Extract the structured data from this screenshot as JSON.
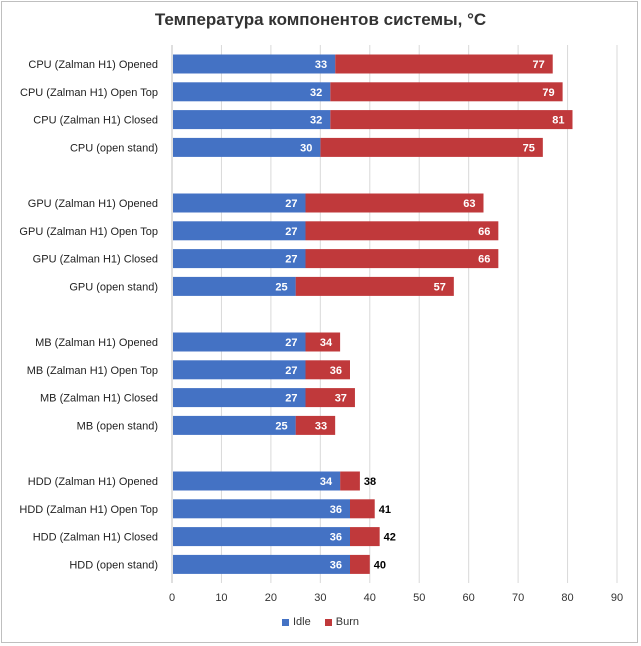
{
  "chart_data": {
    "type": "bar",
    "orientation": "horizontal",
    "stacked_overlay": true,
    "title": "Температура компонентов системы, °C",
    "categories": [
      "CPU (Zalman H1) Opened",
      "CPU (Zalman H1) Open Top",
      "CPU (Zalman H1) Closed",
      "CPU (open stand)",
      "GPU (Zalman  H1) Opened",
      "GPU (Zalman  H1) Open Top",
      "GPU (Zalman  H1) Closed",
      "GPU (open stand)",
      "MB (Zalman H1) Opened",
      "MB (Zalman H1) Open Top",
      "MB (Zalman H1) Closed",
      "MB (open stand)",
      "HDD (Zalman  H1) Opened",
      "HDD (Zalman  H1) Open Top",
      "HDD (Zalman  H1) Closed",
      "HDD (open stand)"
    ],
    "groups": [
      4,
      4,
      4,
      4
    ],
    "series": [
      {
        "name": "Idle",
        "color": "#4472c4",
        "values": [
          33,
          32,
          32,
          30,
          27,
          27,
          27,
          25,
          27,
          27,
          27,
          25,
          34,
          36,
          36,
          36
        ]
      },
      {
        "name": "Burn",
        "color": "#c0393b",
        "values": [
          77,
          79,
          81,
          75,
          63,
          66,
          66,
          57,
          34,
          36,
          37,
          33,
          38,
          41,
          42,
          40
        ]
      }
    ],
    "xlim": [
      0,
      90
    ],
    "xticks": [
      "0",
      "10",
      "20",
      "30",
      "40",
      "50",
      "60",
      "70",
      "80",
      "90"
    ],
    "grid": true,
    "legend_position": "bottom"
  }
}
